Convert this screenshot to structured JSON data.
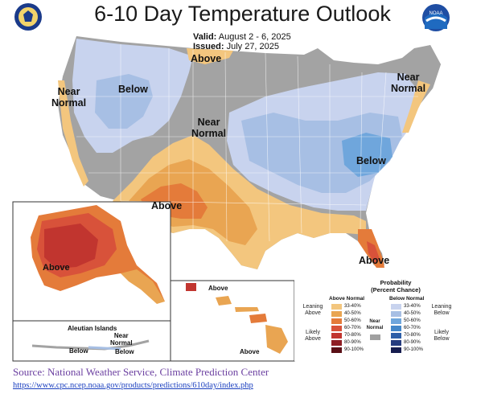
{
  "title": "6-10 Day Temperature Outlook",
  "valid_label": "Valid:",
  "valid_value": "August 2 - 6, 2025",
  "issued_label": "Issued:",
  "issued_value": "July 27, 2025",
  "logos": {
    "left": "department-of-commerce-seal",
    "right": "noaa-logo"
  },
  "map_labels": {
    "above_north": "Above",
    "near_normal_west": "Near\nNormal",
    "below_northwest": "Below",
    "near_normal_central": "Near\nNormal",
    "near_normal_northeast": "Near\nNormal",
    "below_east": "Below",
    "above_southwest": "Above",
    "above_florida": "Above",
    "above_alaska": "Above",
    "aleutian_islands": "Aleutian Islands",
    "near_normal_aleutians": "Near\nNormal",
    "below_aleutians_1": "Below",
    "below_aleutians_2": "Below",
    "above_hawaii_1": "Above",
    "above_hawaii_2": "Above"
  },
  "legend": {
    "title": "Probability\n(Percent Chance)",
    "above_header": "Above Normal",
    "below_header": "Below Normal",
    "near_normal": "Near\nNormal",
    "leaning_above": "Leaning\nAbove",
    "likely_above": "Likely\nAbove",
    "leaning_below": "Leaning\nBelow",
    "likely_below": "Likely\nBelow",
    "above_bins": [
      "33-40%",
      "40-50%",
      "50-60%",
      "60-70%",
      "70-80%",
      "80-90%",
      "90-100%"
    ],
    "below_bins": [
      "33-40%",
      "40-50%",
      "50-60%",
      "60-70%",
      "70-80%",
      "80-90%",
      "90-100%"
    ],
    "above_colors": [
      "#f3c67e",
      "#e9a552",
      "#e47b3a",
      "#d8523a",
      "#c1352f",
      "#8e1d23",
      "#5a0f16"
    ],
    "below_colors": [
      "#c8d3ee",
      "#a7bfe4",
      "#6fa6dc",
      "#4487c9",
      "#2e5fa8",
      "#253c7f",
      "#161d4f"
    ],
    "near_normal_color": "#a0a0a0"
  },
  "source_text": "Source: National Weather Service, Climate Prediction Center",
  "source_url": "https://www.cpc.ncep.noaa.gov/products/predictions/610day/index.php"
}
